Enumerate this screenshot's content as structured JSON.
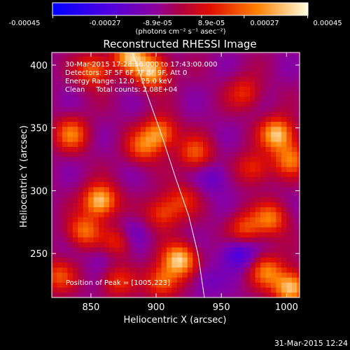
{
  "colorbar": {
    "tick_labels": [
      "-0.00045",
      "-0.00027",
      "-8.9e-05",
      "8.9e-05",
      "0.00027",
      "0.00045"
    ],
    "units_label": "(photons cm⁻² s⁻¹ asec⁻²)"
  },
  "footer": {
    "timestamp": "31-Mar-2015 12:24"
  },
  "chart_data": {
    "type": "heatmap",
    "title": "Reconstructed RHESSI Image",
    "xlabel": "Heliocentric X (arcsec)",
    "ylabel": "Heliocentric Y (arcsec)",
    "xlim": [
      820,
      1010
    ],
    "ylim": [
      215,
      410
    ],
    "x_ticks": [
      850,
      900,
      950,
      1000
    ],
    "y_ticks": [
      250,
      300,
      350,
      400
    ],
    "color_range": [
      -0.00045,
      0.00045
    ],
    "annotations": [
      "30-Mar-2015 17:28:56.000 to 17:43:00.000",
      "Detectors: 3F 5F 6F 7F 8F 9F, Att 0",
      "Energy Range: 12.0 - 25.0 keV",
      "Clean     Total counts: 2.08E+04"
    ],
    "peak_label": "Position of Peak = [1005,223]",
    "peak_position": [
      1005,
      223
    ],
    "hot_spots": [
      {
        "x": 880,
        "y": 408,
        "v": 0.0004
      },
      {
        "x": 897,
        "y": 395,
        "v": 0.00042
      },
      {
        "x": 852,
        "y": 396,
        "v": 0.0003
      },
      {
        "x": 835,
        "y": 345,
        "v": 0.0003
      },
      {
        "x": 903,
        "y": 346,
        "v": 0.00034
      },
      {
        "x": 890,
        "y": 335,
        "v": 0.00026
      },
      {
        "x": 930,
        "y": 330,
        "v": 0.00026
      },
      {
        "x": 968,
        "y": 378,
        "v": 0.0002
      },
      {
        "x": 993,
        "y": 345,
        "v": 0.00044
      },
      {
        "x": 1003,
        "y": 325,
        "v": 0.0003
      },
      {
        "x": 975,
        "y": 318,
        "v": 0.00022
      },
      {
        "x": 857,
        "y": 292,
        "v": 0.00045
      },
      {
        "x": 845,
        "y": 268,
        "v": 0.0003
      },
      {
        "x": 872,
        "y": 260,
        "v": 0.00026
      },
      {
        "x": 920,
        "y": 293,
        "v": 0.00018
      },
      {
        "x": 905,
        "y": 282,
        "v": 0.00024
      },
      {
        "x": 988,
        "y": 278,
        "v": 0.0003
      },
      {
        "x": 968,
        "y": 270,
        "v": 0.00024
      },
      {
        "x": 918,
        "y": 245,
        "v": 0.00044
      },
      {
        "x": 905,
        "y": 228,
        "v": 0.0003
      },
      {
        "x": 825,
        "y": 232,
        "v": 0.00024
      },
      {
        "x": 870,
        "y": 228,
        "v": 0.0002
      },
      {
        "x": 1003,
        "y": 223,
        "v": 0.00045
      },
      {
        "x": 985,
        "y": 236,
        "v": 0.0003
      }
    ],
    "cold_spots": [
      {
        "x": 963,
        "y": 250,
        "v": -0.00022
      },
      {
        "x": 880,
        "y": 265,
        "v": -0.00016
      },
      {
        "x": 945,
        "y": 310,
        "v": -0.00012
      },
      {
        "x": 938,
        "y": 228,
        "v": -0.0001
      },
      {
        "x": 860,
        "y": 248,
        "v": -8e-05
      }
    ],
    "limb_curve": [
      [
        880,
        415
      ],
      [
        892,
        380
      ],
      [
        904,
        345
      ],
      [
        915,
        310
      ],
      [
        925,
        280
      ],
      [
        932,
        250
      ],
      [
        937,
        215
      ]
    ]
  }
}
